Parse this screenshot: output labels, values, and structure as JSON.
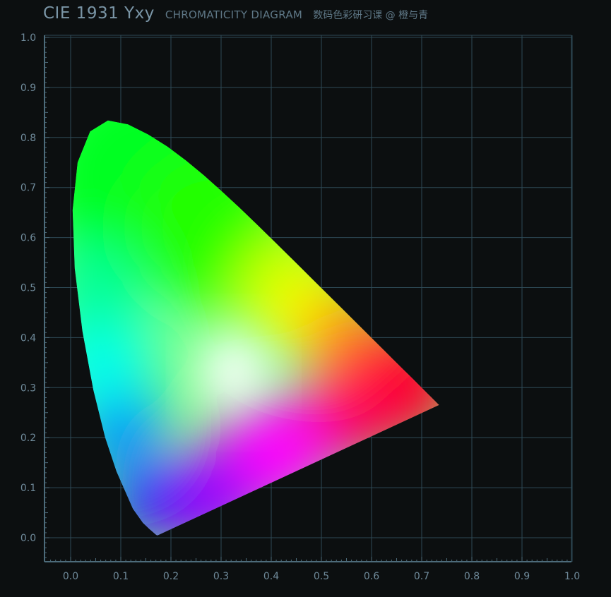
{
  "header": {
    "title": "CIE 1931 Yxy",
    "subtitle": "CHROMATICITY DIAGRAM",
    "author": "数码色彩研习课 @ 橙与青"
  },
  "colors": {
    "background": "#0c0f10",
    "grid": "#2e4a56",
    "axis": "#4d6b7a",
    "label": "#6f8a9a"
  },
  "chart_data": {
    "type": "scatter",
    "title": "CIE 1931 Yxy",
    "subtitle": "CHROMATICITY DIAGRAM",
    "xlabel": "",
    "ylabel": "",
    "xlim": [
      0.0,
      1.0
    ],
    "ylim": [
      0.0,
      1.0
    ],
    "grid": true,
    "x_ticks": [
      "0.0",
      "0.1",
      "0.2",
      "0.3",
      "0.4",
      "0.5",
      "0.6",
      "0.7",
      "0.8",
      "0.9",
      "1.0"
    ],
    "y_ticks": [
      "0.0",
      "0.1",
      "0.2",
      "0.3",
      "0.4",
      "0.5",
      "0.6",
      "0.7",
      "0.8",
      "0.9",
      "1.0"
    ],
    "spectral_locus": {
      "x": [
        0.1741,
        0.1738,
        0.1733,
        0.1726,
        0.1714,
        0.1689,
        0.1644,
        0.1566,
        0.144,
        0.1241,
        0.0913,
        0.0687,
        0.0454,
        0.0235,
        0.0082,
        0.0039,
        0.0139,
        0.0389,
        0.0743,
        0.1142,
        0.1547,
        0.1929,
        0.2296,
        0.2658,
        0.3016,
        0.3373,
        0.3731,
        0.4087,
        0.4441,
        0.4788,
        0.5125,
        0.5448,
        0.5752,
        0.6029,
        0.627,
        0.6482,
        0.6658,
        0.6801,
        0.6915,
        0.7006,
        0.7079,
        0.714,
        0.719,
        0.723,
        0.726,
        0.7283,
        0.73,
        0.7347
      ],
      "y": [
        0.005,
        0.0049,
        0.0048,
        0.0048,
        0.0051,
        0.0069,
        0.0109,
        0.0177,
        0.0297,
        0.0578,
        0.1327,
        0.2007,
        0.295,
        0.4127,
        0.5384,
        0.6548,
        0.7502,
        0.812,
        0.8338,
        0.8262,
        0.8059,
        0.7816,
        0.7543,
        0.7243,
        0.6923,
        0.6589,
        0.6245,
        0.5896,
        0.5547,
        0.5202,
        0.4866,
        0.4544,
        0.4242,
        0.3965,
        0.3725,
        0.3514,
        0.334,
        0.3197,
        0.3083,
        0.2993,
        0.292,
        0.2859,
        0.2809,
        0.277,
        0.274,
        0.2717,
        0.27,
        0.2653
      ]
    }
  }
}
